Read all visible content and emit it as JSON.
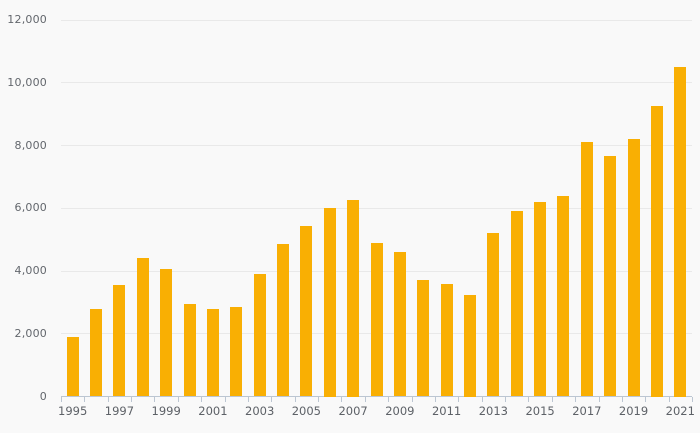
{
  "chart_data": {
    "type": "bar",
    "title": "",
    "xlabel": "",
    "ylabel": "",
    "categories": [
      "1995",
      "1996",
      "1997",
      "1998",
      "1999",
      "2000",
      "2001",
      "2002",
      "2003",
      "2004",
      "2005",
      "2006",
      "2007",
      "2008",
      "2009",
      "2010",
      "2011",
      "2012",
      "2013",
      "2014",
      "2015",
      "2016",
      "2017",
      "2018",
      "2019",
      "2020",
      "2021"
    ],
    "values": [
      1900,
      2800,
      3550,
      4400,
      4050,
      2950,
      2800,
      2850,
      3900,
      4850,
      5450,
      6000,
      6250,
      4900,
      4600,
      3700,
      3600,
      3250,
      5200,
      5900,
      6200,
      6400,
      8100,
      7650,
      8200,
      9250,
      10500
    ],
    "x_tick_labels_shown": [
      "1995",
      "1997",
      "1999",
      "2001",
      "2003",
      "2005",
      "2007",
      "2009",
      "2011",
      "2013",
      "2015",
      "2017",
      "2019",
      "2021"
    ],
    "y_ticks": [
      0,
      2000,
      4000,
      6000,
      8000,
      10000,
      12000
    ],
    "y_tick_labels": [
      "0",
      "2,000",
      "4,000",
      "6,000",
      "8,000",
      "10,000",
      "12,000"
    ],
    "ylim": [
      0,
      12000
    ],
    "grid": "horizontal",
    "legend": "none",
    "bar_color": "#f9af03",
    "background_color": "#f9f9f9",
    "gridline_color": "#e9e9e9",
    "axis_line_color": "#bcc6d2",
    "label_color": "#63676d"
  }
}
